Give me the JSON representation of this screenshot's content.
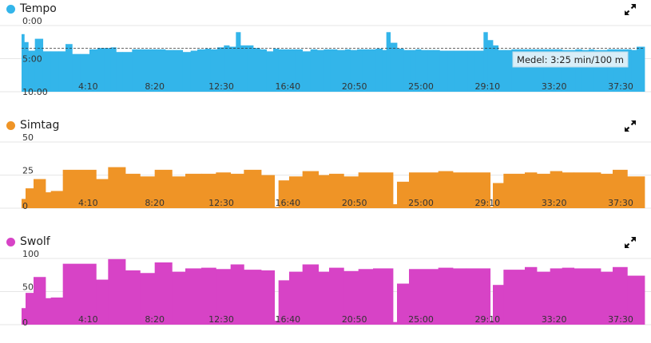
{
  "chart_data": [
    {
      "type": "bar",
      "title": "Tempo",
      "color": "#33b5ea",
      "y_reversed": true,
      "ylim": [
        0,
        10
      ],
      "ytick_values": [
        0,
        5,
        10
      ],
      "ytick_labels": [
        "0:00",
        "5:00",
        "10:00"
      ],
      "x_tick_values": [
        250,
        500,
        750,
        1000,
        1250,
        1500,
        1750,
        2000,
        2250
      ],
      "x_tick_labels": [
        "4:10",
        "8:20",
        "12:30",
        "16:40",
        "20:50",
        "25:00",
        "29:10",
        "33:20",
        "37:30"
      ],
      "xlim": [
        0,
        2340
      ],
      "average_value": 3.42,
      "annotation": "Medel: 3:25 min/100 m",
      "bars": [
        [
          0,
          10,
          1.3
        ],
        [
          10,
          25,
          2.5
        ],
        [
          25,
          50,
          3.8
        ],
        [
          50,
          80,
          2.0
        ],
        [
          80,
          110,
          3.9
        ],
        [
          110,
          140,
          3.9
        ],
        [
          140,
          165,
          3.9
        ],
        [
          165,
          190,
          2.8
        ],
        [
          190,
          220,
          4.3
        ],
        [
          220,
          255,
          4.3
        ],
        [
          255,
          285,
          3.6
        ],
        [
          285,
          310,
          3.4
        ],
        [
          310,
          335,
          3.4
        ],
        [
          335,
          355,
          3.3
        ],
        [
          355,
          380,
          4.0
        ],
        [
          380,
          415,
          4.0
        ],
        [
          415,
          450,
          3.6
        ],
        [
          450,
          480,
          3.6
        ],
        [
          480,
          510,
          3.6
        ],
        [
          510,
          540,
          3.6
        ],
        [
          540,
          570,
          3.7
        ],
        [
          570,
          605,
          3.7
        ],
        [
          605,
          635,
          4.0
        ],
        [
          635,
          660,
          3.8
        ],
        [
          660,
          690,
          3.6
        ],
        [
          690,
          710,
          3.5
        ],
        [
          710,
          735,
          3.6
        ],
        [
          735,
          760,
          3.3
        ],
        [
          760,
          780,
          3.0
        ],
        [
          780,
          805,
          3.2
        ],
        [
          805,
          822,
          1.0
        ],
        [
          822,
          848,
          3.0
        ],
        [
          848,
          870,
          3.0
        ],
        [
          870,
          895,
          3.4
        ],
        [
          895,
          920,
          3.6
        ],
        [
          920,
          945,
          3.9
        ],
        [
          945,
          965,
          3.5
        ],
        [
          965,
          1000,
          3.6
        ],
        [
          1000,
          1030,
          3.6
        ],
        [
          1030,
          1055,
          3.6
        ],
        [
          1055,
          1085,
          3.9
        ],
        [
          1085,
          1110,
          3.6
        ],
        [
          1110,
          1135,
          3.7
        ],
        [
          1135,
          1160,
          3.6
        ],
        [
          1160,
          1185,
          3.6
        ],
        [
          1185,
          1215,
          3.7
        ],
        [
          1215,
          1235,
          3.6
        ],
        [
          1235,
          1260,
          3.7
        ],
        [
          1260,
          1280,
          3.6
        ],
        [
          1280,
          1305,
          3.6
        ],
        [
          1305,
          1330,
          3.6
        ],
        [
          1330,
          1355,
          3.5
        ],
        [
          1355,
          1370,
          3.7
        ],
        [
          1370,
          1385,
          1.0
        ],
        [
          1385,
          1410,
          2.6
        ],
        [
          1410,
          1435,
          3.5
        ],
        [
          1435,
          1460,
          3.7
        ],
        [
          1460,
          1480,
          3.7
        ],
        [
          1480,
          1500,
          3.6
        ],
        [
          1500,
          1525,
          3.7
        ],
        [
          1525,
          1545,
          3.7
        ],
        [
          1545,
          1570,
          3.7
        ],
        [
          1570,
          1600,
          3.8
        ],
        [
          1600,
          1625,
          3.8
        ],
        [
          1625,
          1650,
          3.8
        ],
        [
          1650,
          1675,
          3.8
        ],
        [
          1675,
          1700,
          3.8
        ],
        [
          1700,
          1725,
          3.8
        ],
        [
          1725,
          1735,
          3.8
        ],
        [
          1735,
          1750,
          1.0
        ],
        [
          1750,
          1770,
          2.2
        ],
        [
          1770,
          1790,
          3.0
        ],
        [
          1790,
          1815,
          3.7
        ],
        [
          1815,
          1840,
          3.7
        ],
        [
          1840,
          1865,
          3.6
        ],
        [
          1865,
          1890,
          3.6
        ],
        [
          1890,
          1910,
          3.6
        ],
        [
          1910,
          1935,
          3.6
        ],
        [
          1935,
          1960,
          3.6
        ],
        [
          1960,
          1985,
          3.6
        ],
        [
          1985,
          2010,
          3.6
        ],
        [
          2010,
          2030,
          3.6
        ],
        [
          2030,
          2055,
          3.7
        ],
        [
          2055,
          2080,
          3.7
        ],
        [
          2080,
          2105,
          3.6
        ],
        [
          2105,
          2130,
          3.7
        ],
        [
          2130,
          2150,
          3.6
        ],
        [
          2150,
          2175,
          3.7
        ],
        [
          2175,
          2200,
          3.7
        ],
        [
          2200,
          2225,
          3.6
        ],
        [
          2225,
          2250,
          3.6
        ],
        [
          2250,
          2270,
          3.6
        ],
        [
          2270,
          2290,
          3.6
        ],
        [
          2290,
          2310,
          3.7
        ],
        [
          2310,
          2340,
          3.2
        ]
      ]
    },
    {
      "type": "bar",
      "title": "Simtag",
      "color": "#ef9426",
      "ylim": [
        0,
        50
      ],
      "ytick_values": [
        0,
        25,
        50
      ],
      "ytick_labels": [
        "0",
        "25",
        "50"
      ],
      "x_tick_values": [
        250,
        500,
        750,
        1000,
        1250,
        1500,
        1750,
        2000,
        2250
      ],
      "x_tick_labels": [
        "4:10",
        "8:20",
        "12:30",
        "16:40",
        "20:50",
        "25:00",
        "29:10",
        "33:20",
        "37:30"
      ],
      "xlim": [
        0,
        2340
      ],
      "bars": [
        [
          0,
          15,
          7
        ],
        [
          15,
          45,
          15
        ],
        [
          45,
          90,
          22
        ],
        [
          90,
          110,
          12
        ],
        [
          110,
          155,
          13
        ],
        [
          155,
          280,
          29
        ],
        [
          280,
          325,
          22
        ],
        [
          325,
          390,
          31
        ],
        [
          390,
          445,
          26
        ],
        [
          445,
          500,
          24
        ],
        [
          500,
          565,
          29
        ],
        [
          565,
          615,
          24
        ],
        [
          615,
          675,
          26
        ],
        [
          675,
          730,
          26
        ],
        [
          730,
          785,
          27
        ],
        [
          785,
          835,
          26
        ],
        [
          835,
          900,
          29
        ],
        [
          900,
          950,
          25
        ],
        [
          950,
          965,
          1
        ],
        [
          965,
          1005,
          21
        ],
        [
          1005,
          1055,
          24
        ],
        [
          1055,
          1115,
          28
        ],
        [
          1115,
          1155,
          25
        ],
        [
          1155,
          1210,
          26
        ],
        [
          1210,
          1265,
          24
        ],
        [
          1265,
          1395,
          27
        ],
        [
          1395,
          1410,
          3
        ],
        [
          1410,
          1455,
          20
        ],
        [
          1455,
          1565,
          27
        ],
        [
          1565,
          1620,
          28
        ],
        [
          1620,
          1670,
          27
        ],
        [
          1670,
          1760,
          27
        ],
        [
          1760,
          1770,
          1
        ],
        [
          1770,
          1810,
          19
        ],
        [
          1810,
          1890,
          26
        ],
        [
          1890,
          1935,
          27
        ],
        [
          1935,
          1985,
          26
        ],
        [
          1985,
          2030,
          28
        ],
        [
          2030,
          2075,
          27
        ],
        [
          2075,
          2175,
          27
        ],
        [
          2175,
          2220,
          26
        ],
        [
          2220,
          2275,
          29
        ],
        [
          2275,
          2340,
          24
        ]
      ]
    },
    {
      "type": "bar",
      "title": "Swolf",
      "color": "#d743c6",
      "ylim": [
        0,
        100
      ],
      "ytick_values": [
        0,
        50,
        100
      ],
      "ytick_labels": [
        "0",
        "50",
        "100"
      ],
      "x_tick_values": [
        250,
        500,
        750,
        1000,
        1250,
        1500,
        1750,
        2000,
        2250
      ],
      "x_tick_labels": [
        "4:10",
        "8:20",
        "12:30",
        "16:40",
        "20:50",
        "25:00",
        "29:10",
        "33:20",
        "37:30"
      ],
      "xlim": [
        0,
        2340
      ],
      "bars": [
        [
          0,
          15,
          25
        ],
        [
          15,
          45,
          48
        ],
        [
          45,
          90,
          72
        ],
        [
          90,
          110,
          40
        ],
        [
          110,
          155,
          41
        ],
        [
          155,
          280,
          92
        ],
        [
          280,
          325,
          68
        ],
        [
          325,
          390,
          99
        ],
        [
          390,
          445,
          82
        ],
        [
          445,
          500,
          78
        ],
        [
          500,
          565,
          94
        ],
        [
          565,
          615,
          80
        ],
        [
          615,
          675,
          85
        ],
        [
          675,
          730,
          86
        ],
        [
          730,
          785,
          84
        ],
        [
          785,
          835,
          91
        ],
        [
          835,
          900,
          83
        ],
        [
          900,
          950,
          82
        ],
        [
          950,
          965,
          6
        ],
        [
          965,
          1005,
          67
        ],
        [
          1005,
          1055,
          80
        ],
        [
          1055,
          1115,
          91
        ],
        [
          1115,
          1155,
          80
        ],
        [
          1155,
          1210,
          86
        ],
        [
          1210,
          1265,
          81
        ],
        [
          1265,
          1320,
          84
        ],
        [
          1320,
          1395,
          85
        ],
        [
          1395,
          1410,
          4
        ],
        [
          1410,
          1455,
          62
        ],
        [
          1455,
          1565,
          84
        ],
        [
          1565,
          1620,
          86
        ],
        [
          1620,
          1670,
          85
        ],
        [
          1670,
          1760,
          85
        ],
        [
          1760,
          1770,
          6
        ],
        [
          1770,
          1810,
          60
        ],
        [
          1810,
          1890,
          83
        ],
        [
          1890,
          1935,
          87
        ],
        [
          1935,
          1985,
          80
        ],
        [
          1985,
          2030,
          85
        ],
        [
          2030,
          2075,
          86
        ],
        [
          2075,
          2175,
          85
        ],
        [
          2175,
          2220,
          80
        ],
        [
          2220,
          2275,
          87
        ],
        [
          2275,
          2340,
          74
        ]
      ]
    }
  ]
}
